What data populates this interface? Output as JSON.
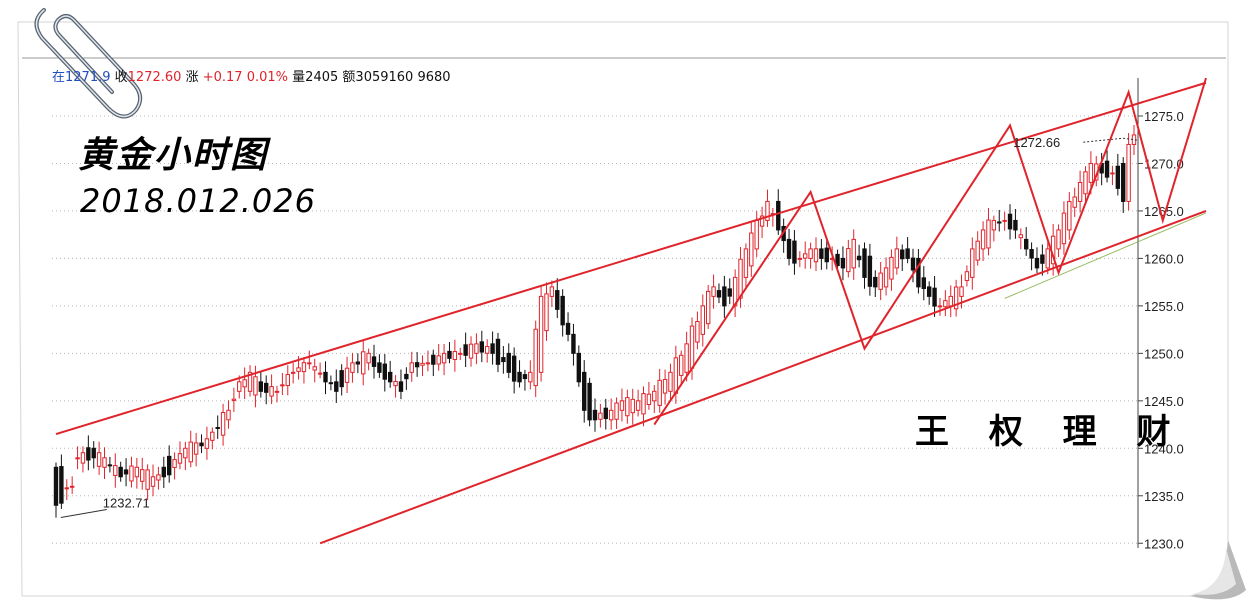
{
  "toolbar": {
    "prefix": "在12",
    "obscured": "71.9",
    "close_label": "收",
    "close_value": "1272.60",
    "change_label": "涨",
    "change_value": "+0.17",
    "change_pct": "0.01%",
    "volume_label": "量",
    "volume_value": "2405",
    "amount_label": "额",
    "amount_value": "3059160",
    "extra_value": "9680"
  },
  "title": "黄金小时图",
  "subtitle": "2018.012.026",
  "watermark": "王 权 理 财",
  "colors": {
    "up": "#e0242b",
    "down": "#111111",
    "trend": "#e0242b",
    "grid": "#b8b8b8",
    "support_tint": "#7caa3a"
  },
  "icons": {
    "paperclip": "paperclip-icon"
  },
  "chart_data": {
    "type": "candlestick",
    "title": "黄金小时图",
    "ylim": [
      1229.5,
      1279
    ],
    "yticks": [
      "1230.0",
      "1235.0",
      "1240.0",
      "1245.0",
      "1250.0",
      "1255.0",
      "1260.0",
      "1265.0",
      "1270.0",
      "1275.0"
    ],
    "grid": true,
    "annotations": [
      {
        "text": "1232.71",
        "at_index": 2,
        "price": 1232.71
      },
      {
        "text": "1272.66",
        "at_index": 198,
        "price": 1272.66
      }
    ],
    "ohlc_anchors": [
      [
        0,
        1238,
        1234
      ],
      [
        3,
        1236,
        1236
      ],
      [
        4,
        1239,
        1239
      ],
      [
        7,
        1240,
        1239
      ],
      [
        9,
        1238,
        1239
      ],
      [
        12,
        1238,
        1237
      ],
      [
        15,
        1237,
        1238
      ],
      [
        18,
        1236,
        1237
      ],
      [
        20,
        1238,
        1237
      ],
      [
        24,
        1239,
        1240
      ],
      [
        28,
        1240,
        1241
      ],
      [
        32,
        1243,
        1244
      ],
      [
        34,
        1246,
        1247
      ],
      [
        36,
        1246,
        1248
      ],
      [
        38,
        1247,
        1246
      ],
      [
        41,
        1246,
        1246
      ],
      [
        44,
        1248,
        1248
      ],
      [
        47,
        1249,
        1249
      ],
      [
        50,
        1248,
        1247
      ],
      [
        52,
        1247,
        1246
      ],
      [
        55,
        1248,
        1249
      ],
      [
        58,
        1249,
        1250
      ],
      [
        60,
        1249,
        1248
      ],
      [
        62,
        1248,
        1247
      ],
      [
        64,
        1247,
        1246
      ],
      [
        66,
        1248,
        1249
      ],
      [
        69,
        1249,
        1249
      ],
      [
        72,
        1249,
        1250
      ],
      [
        75,
        1250,
        1250
      ],
      [
        78,
        1250,
        1251
      ],
      [
        81,
        1251,
        1250
      ],
      [
        84,
        1250,
        1248
      ],
      [
        86,
        1248,
        1247
      ],
      [
        88,
        1247,
        1248
      ],
      [
        90,
        1248,
        1256
      ],
      [
        92,
        1256,
        1257
      ],
      [
        94,
        1256,
        1253
      ],
      [
        96,
        1252,
        1250
      ],
      [
        98,
        1248,
        1244
      ],
      [
        100,
        1244,
        1243
      ],
      [
        103,
        1243,
        1244
      ],
      [
        105,
        1244,
        1245
      ],
      [
        108,
        1244,
        1245
      ],
      [
        111,
        1245,
        1246
      ],
      [
        114,
        1246,
        1248
      ],
      [
        117,
        1248,
        1251
      ],
      [
        120,
        1252,
        1255
      ],
      [
        122,
        1256,
        1257
      ],
      [
        124,
        1257,
        1255
      ],
      [
        126,
        1255,
        1258
      ],
      [
        128,
        1258,
        1261
      ],
      [
        130,
        1261,
        1264
      ],
      [
        132,
        1264,
        1266
      ],
      [
        134,
        1266,
        1263
      ],
      [
        136,
        1262,
        1260
      ],
      [
        138,
        1260,
        1260
      ],
      [
        140,
        1260,
        1261
      ],
      [
        142,
        1261,
        1260
      ],
      [
        144,
        1260,
        1260
      ],
      [
        146,
        1260,
        1259
      ],
      [
        148,
        1259,
        1262
      ],
      [
        150,
        1261,
        1258
      ],
      [
        152,
        1258,
        1257
      ],
      [
        154,
        1257,
        1259
      ],
      [
        156,
        1259,
        1261
      ],
      [
        158,
        1261,
        1260
      ],
      [
        160,
        1260,
        1257
      ],
      [
        162,
        1257,
        1256
      ],
      [
        164,
        1255,
        1255
      ],
      [
        166,
        1255,
        1256
      ],
      [
        168,
        1256,
        1257
      ],
      [
        170,
        1258,
        1261
      ],
      [
        172,
        1261,
        1263
      ],
      [
        174,
        1263,
        1264
      ],
      [
        176,
        1264,
        1264
      ],
      [
        178,
        1264,
        1263
      ],
      [
        180,
        1262,
        1261
      ],
      [
        182,
        1260,
        1259
      ],
      [
        184,
        1259,
        1261
      ],
      [
        186,
        1261,
        1263
      ],
      [
        188,
        1263,
        1266
      ],
      [
        190,
        1266,
        1268
      ],
      [
        192,
        1268,
        1270
      ],
      [
        194,
        1270,
        1269
      ],
      [
        196,
        1269,
        1269
      ],
      [
        198,
        1270,
        1266
      ],
      [
        199,
        1266,
        1272
      ],
      [
        200,
        1272,
        1273
      ]
    ],
    "trendlines": [
      {
        "name": "upper-channel",
        "points": [
          [
            0,
            1241.5
          ],
          [
            220,
            1278.5
          ]
        ]
      },
      {
        "name": "lower-channel",
        "points": [
          [
            49,
            1230
          ],
          [
            220,
            1265
          ]
        ]
      },
      {
        "name": "zigzag",
        "points": [
          [
            111,
            1242.5
          ],
          [
            140,
            1267
          ],
          [
            150,
            1250.5
          ],
          [
            177,
            1274
          ],
          [
            186,
            1258.5
          ],
          [
            199,
            1277.5
          ],
          [
            208,
            1264
          ],
          [
            220,
            1279
          ]
        ]
      }
    ]
  }
}
